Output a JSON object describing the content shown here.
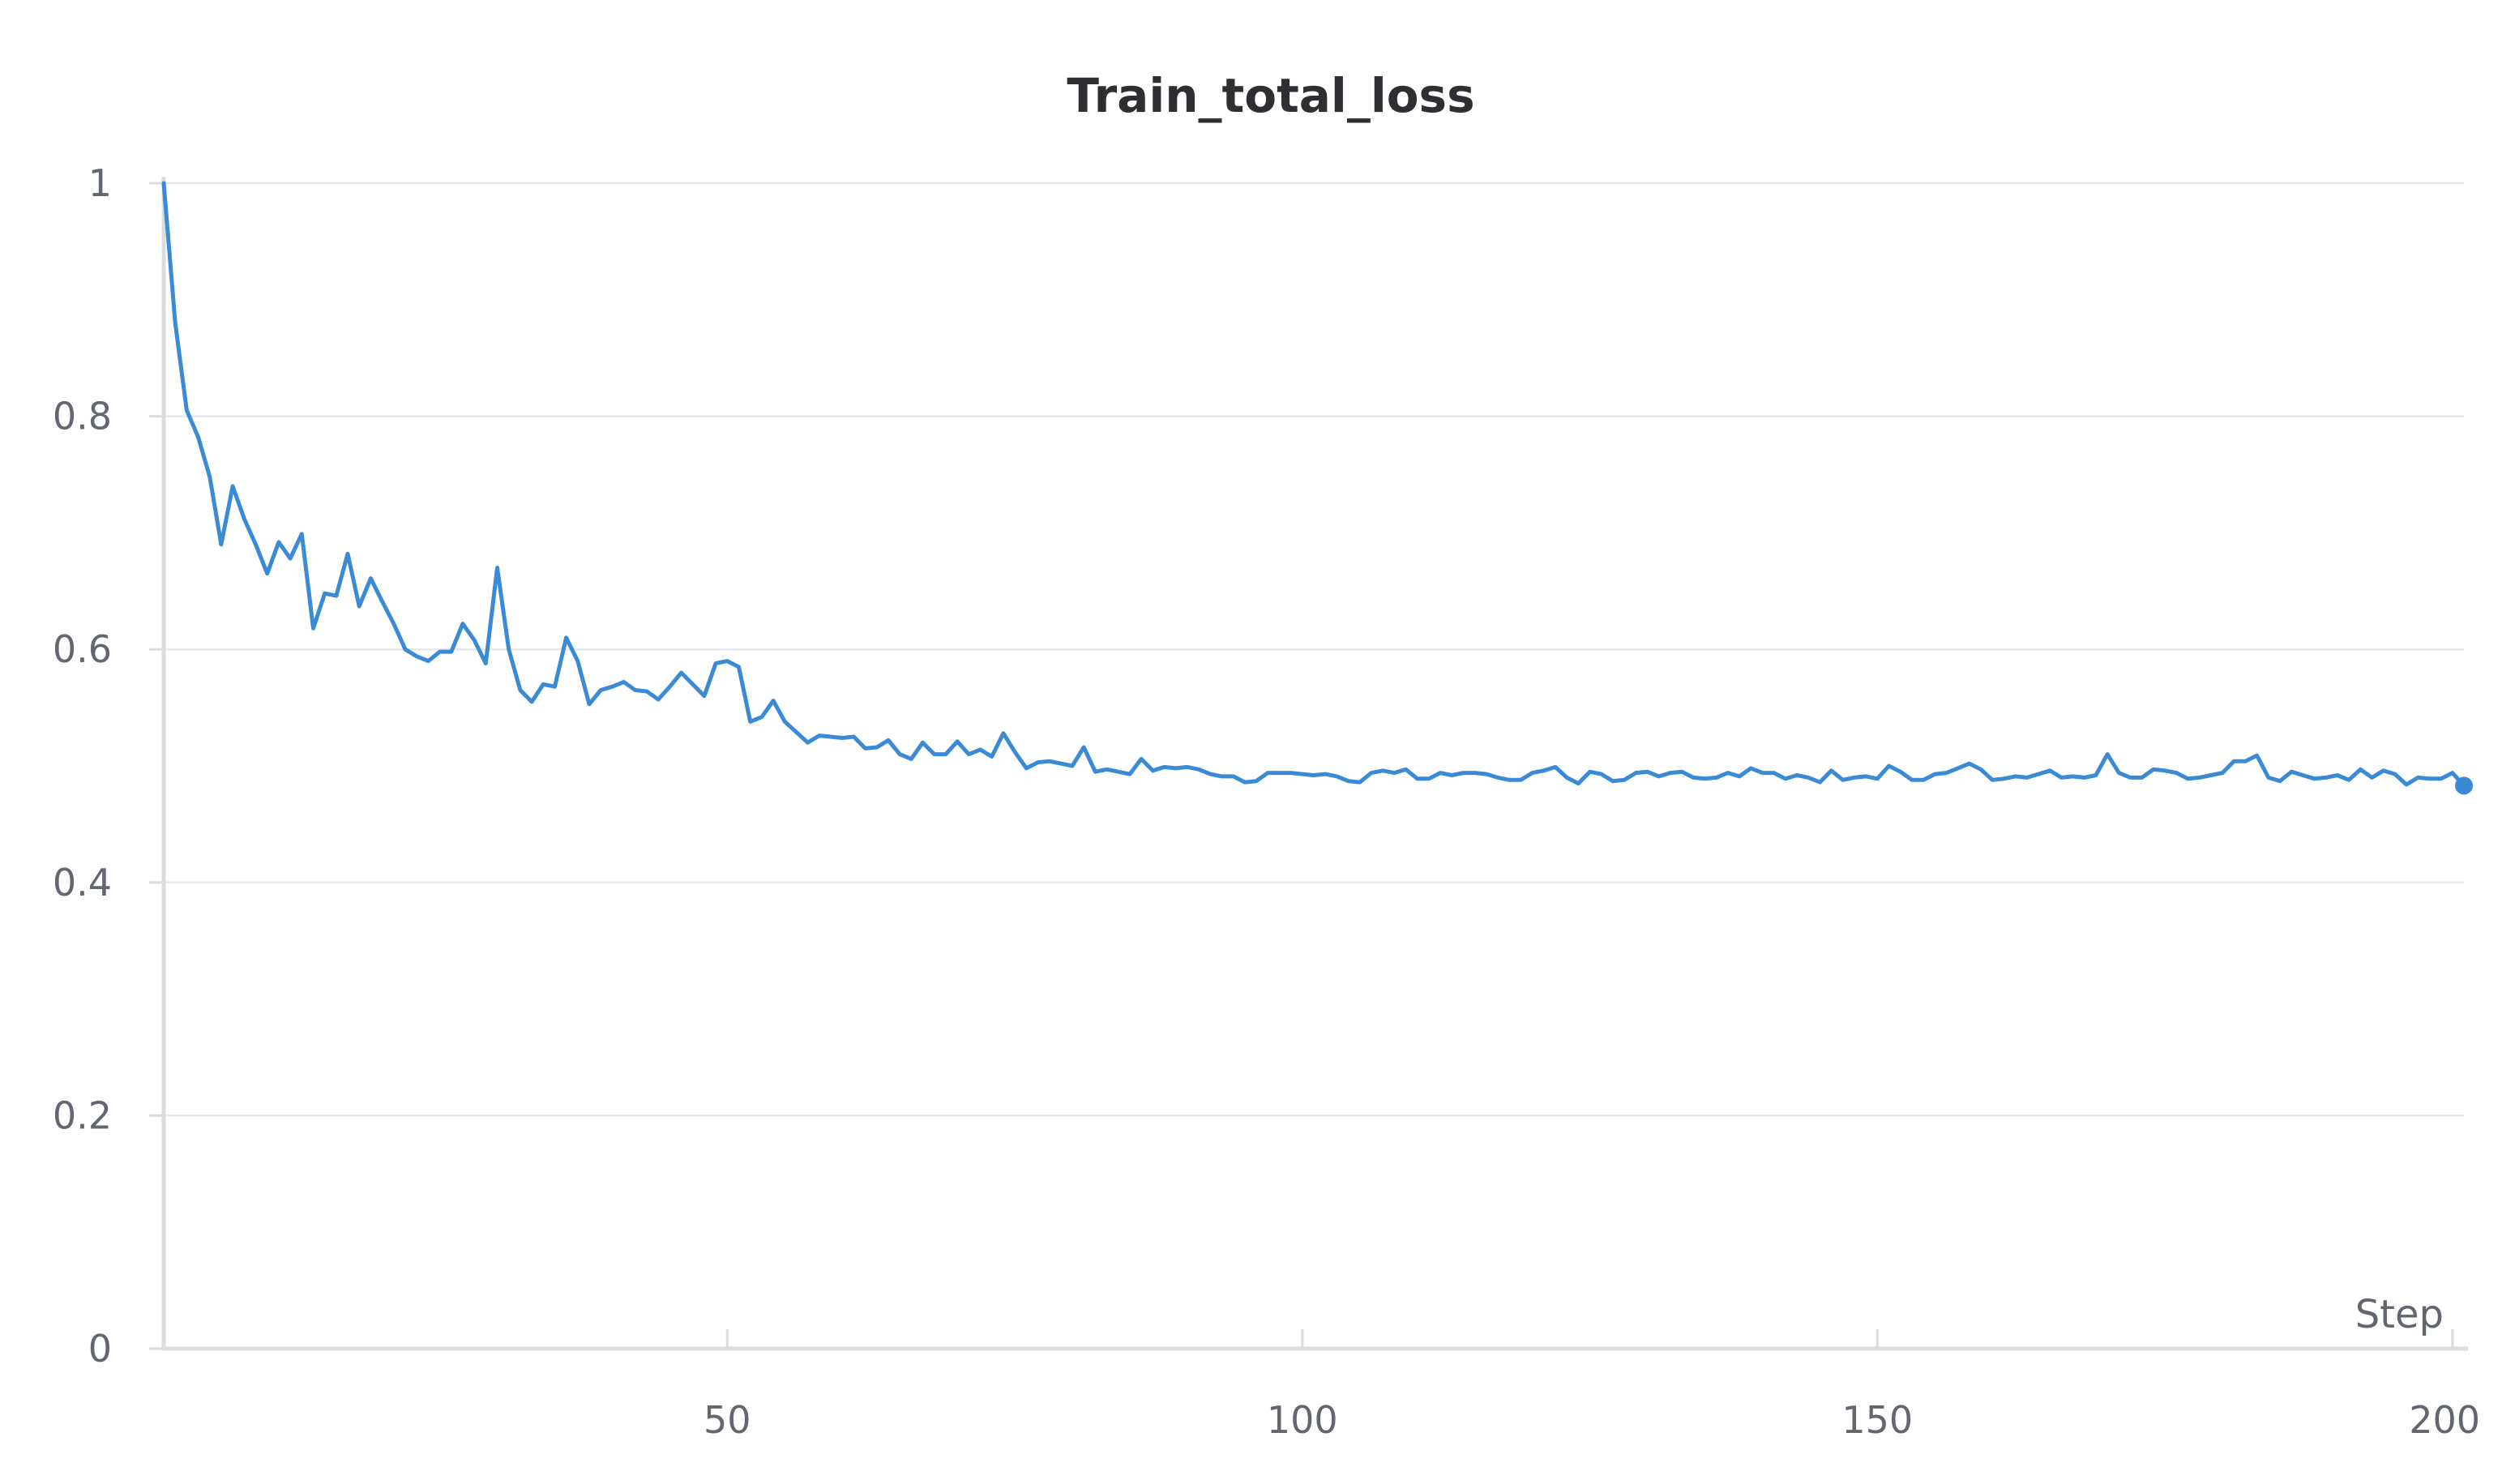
{
  "chart_data": {
    "type": "line",
    "title": "Train_total_loss",
    "xlabel": "Step",
    "ylabel": "",
    "xlim": [
      1,
      201
    ],
    "ylim": [
      0,
      1
    ],
    "xticks": [
      50,
      100,
      150,
      200
    ],
    "xtick_labels": [
      "50",
      "100",
      "150",
      "200"
    ],
    "yticks": [
      0,
      0.2,
      0.4,
      0.6,
      0.8,
      1
    ],
    "ytick_labels": [
      "0",
      "0.2",
      "0.4",
      "0.6",
      "0.8",
      "1"
    ],
    "grid": true,
    "legend": "none",
    "colors": {
      "line": "#3a8ad6",
      "grid": "#e6e7ea",
      "axis": "#dadce0",
      "text": "#62666e",
      "title": "#2d2f33"
    },
    "series": [
      {
        "values": [
          1.0,
          0.88,
          0.805,
          0.782,
          0.748,
          0.69,
          0.74,
          0.712,
          0.69,
          0.665,
          0.692,
          0.678,
          0.699,
          0.618,
          0.648,
          0.646,
          0.682,
          0.637,
          0.661,
          0.641,
          0.622,
          0.6,
          0.594,
          0.59,
          0.598,
          0.598,
          0.622,
          0.608,
          0.588,
          0.67,
          0.6,
          0.565,
          0.555,
          0.57,
          0.568,
          0.61,
          0.59,
          0.553,
          0.565,
          0.568,
          0.572,
          0.565,
          0.564,
          0.557,
          0.568,
          0.58,
          0.57,
          0.56,
          0.588,
          0.59,
          0.585,
          0.538,
          0.542,
          0.556,
          0.538,
          0.529,
          0.52,
          0.526,
          0.525,
          0.524,
          0.525,
          0.515,
          0.516,
          0.522,
          0.51,
          0.506,
          0.52,
          0.51,
          0.51,
          0.521,
          0.51,
          0.514,
          0.508,
          0.528,
          0.512,
          0.498,
          0.503,
          0.504,
          0.502,
          0.5,
          0.516,
          0.495,
          0.497,
          0.495,
          0.493,
          0.506,
          0.496,
          0.499,
          0.498,
          0.499,
          0.497,
          0.493,
          0.491,
          0.491,
          0.486,
          0.487,
          0.494,
          0.494,
          0.494,
          0.493,
          0.492,
          0.493,
          0.491,
          0.487,
          0.486,
          0.494,
          0.496,
          0.494,
          0.497,
          0.489,
          0.489,
          0.494,
          0.492,
          0.494,
          0.494,
          0.493,
          0.49,
          0.488,
          0.488,
          0.494,
          0.496,
          0.499,
          0.49,
          0.485,
          0.495,
          0.493,
          0.487,
          0.488,
          0.494,
          0.495,
          0.491,
          0.494,
          0.495,
          0.49,
          0.489,
          0.49,
          0.494,
          0.491,
          0.498,
          0.494,
          0.494,
          0.489,
          0.492,
          0.49,
          0.486,
          0.496,
          0.488,
          0.49,
          0.491,
          0.489,
          0.5,
          0.495,
          0.488,
          0.488,
          0.493,
          0.494,
          0.498,
          0.502,
          0.497,
          0.488,
          0.489,
          0.491,
          0.49,
          0.493,
          0.496,
          0.49,
          0.491,
          0.49,
          0.492,
          0.51,
          0.494,
          0.49,
          0.49,
          0.497,
          0.496,
          0.494,
          0.489,
          0.49,
          0.492,
          0.494,
          0.504,
          0.504,
          0.509,
          0.49,
          0.487,
          0.495,
          0.492,
          0.489,
          0.49,
          0.492,
          0.488,
          0.497,
          0.49,
          0.496,
          0.493,
          0.484,
          0.49,
          0.489,
          0.489,
          0.494,
          0.483
        ]
      }
    ]
  }
}
